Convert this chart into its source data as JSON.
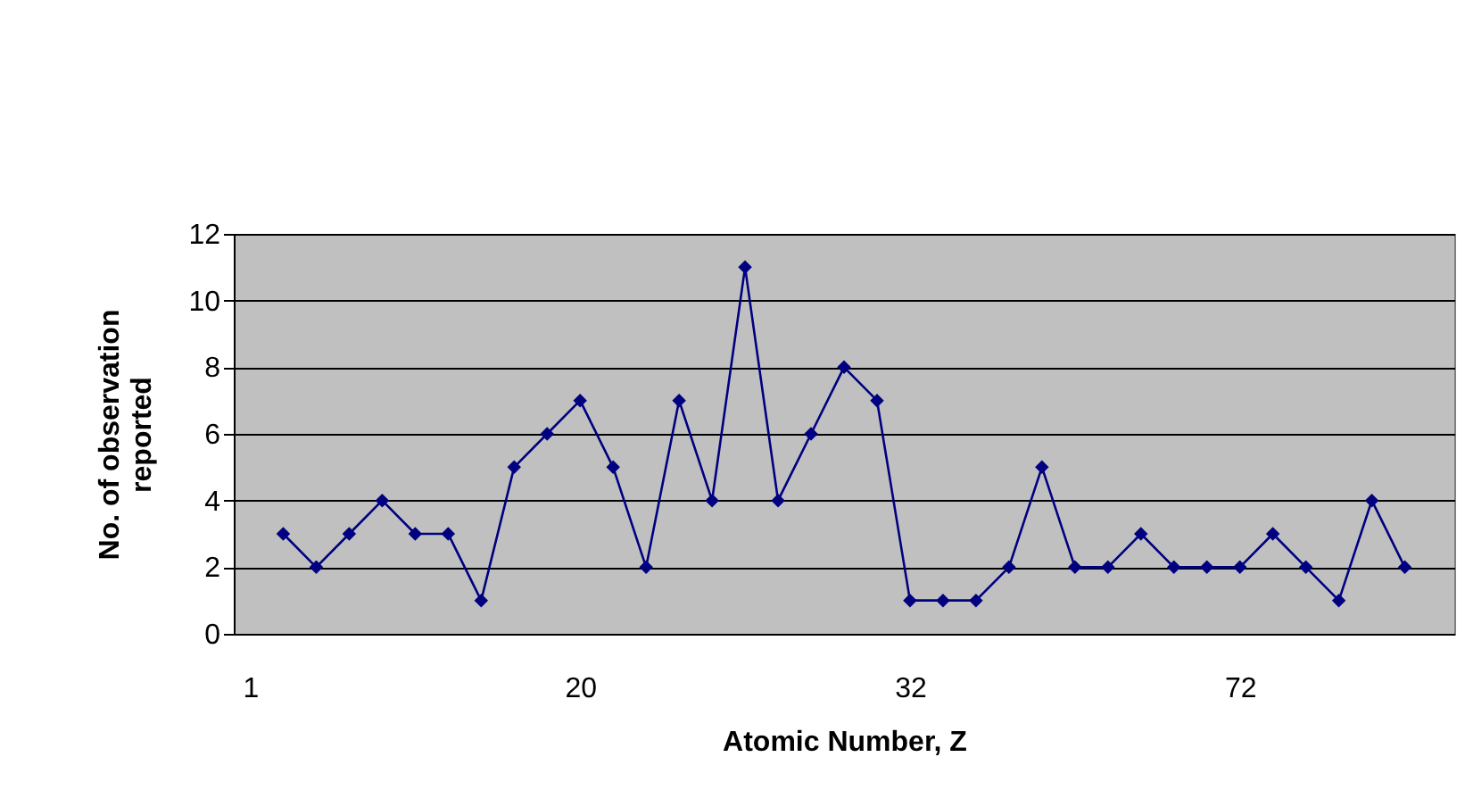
{
  "chart_data": {
    "type": "line",
    "xlabel": "Atomic Number, Z",
    "ylabel": "No. of observation reported",
    "categories": [
      "1",
      null,
      null,
      null,
      null,
      null,
      null,
      null,
      null,
      null,
      "20",
      null,
      null,
      null,
      null,
      null,
      null,
      null,
      null,
      null,
      "32",
      null,
      null,
      null,
      null,
      null,
      null,
      null,
      null,
      null,
      "72",
      null,
      null,
      null,
      null,
      null,
      null
    ],
    "series": [
      {
        "color": "#000080",
        "values": [
          null,
          3,
          2,
          3,
          4,
          3,
          3,
          1,
          5,
          6,
          7,
          5,
          2,
          7,
          4,
          11,
          4,
          6,
          8,
          7,
          1,
          1,
          1,
          2,
          5,
          2,
          2,
          3,
          2,
          2,
          2,
          3,
          2,
          1,
          4,
          2,
          null
        ]
      }
    ],
    "ylim": [
      0,
      12
    ],
    "yticks": [
      0,
      2,
      4,
      6,
      8,
      10,
      12
    ],
    "grid": "y",
    "marker": "diamond",
    "line_style": "solid"
  }
}
